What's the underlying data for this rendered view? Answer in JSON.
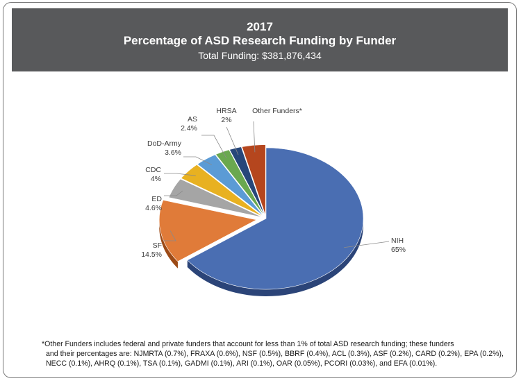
{
  "header": {
    "year": "2017",
    "title": "Percentage of ASD Research Funding by Funder",
    "total": "Total Funding: $381,876,434"
  },
  "chart_data": {
    "type": "pie",
    "title": "Percentage of ASD Research Funding by Funder",
    "slices": [
      {
        "name": "NIH",
        "label": "65%",
        "value": 65,
        "color": "#4a6eb2",
        "side": "#2b4478"
      },
      {
        "name": "SF",
        "label": "14.5%",
        "value": 14.5,
        "color": "#e07b39",
        "side": "#9c4a16"
      },
      {
        "name": "ED",
        "label": "4.6%",
        "value": 4.6,
        "color": "#a5a5a5",
        "side": "#6e6e6e"
      },
      {
        "name": "CDC",
        "label": "4%",
        "value": 4,
        "color": "#e8b121",
        "side": "#a07a12"
      },
      {
        "name": "DoD-Army",
        "label": "3.6%",
        "value": 3.6,
        "color": "#5b9bd5",
        "side": "#36689a"
      },
      {
        "name": "AS",
        "label": "2.4%",
        "value": 2.4,
        "color": "#6aa84f",
        "side": "#44712f"
      },
      {
        "name": "HRSA",
        "label": "2%",
        "value": 2,
        "color": "#27477a",
        "side": "#172c4d"
      },
      {
        "name": "Other Funders*",
        "label": "",
        "value": 3.9,
        "color": "#b5461e",
        "side": "#7a2c10"
      }
    ]
  },
  "footnote": {
    "line1": "*Other Funders includes federal and private funders that account for less than 1% of total ASD research funding; these funders",
    "line2": "and their percentages are: NJMRTA (0.7%), FRAXA (0.6%), NSF (0.5%), BBRF (0.4%), ACL (0.3%), ASF (0.2%), CARD (0.2%), EPA (0.2%),",
    "line3": "NECC (0.1%), AHRQ (0.1%), TSA (0.1%), GADMI (0.1%), ARI (0.1%), OAR (0.05%), PCORI (0.03%), and EFA (0.01%)."
  }
}
